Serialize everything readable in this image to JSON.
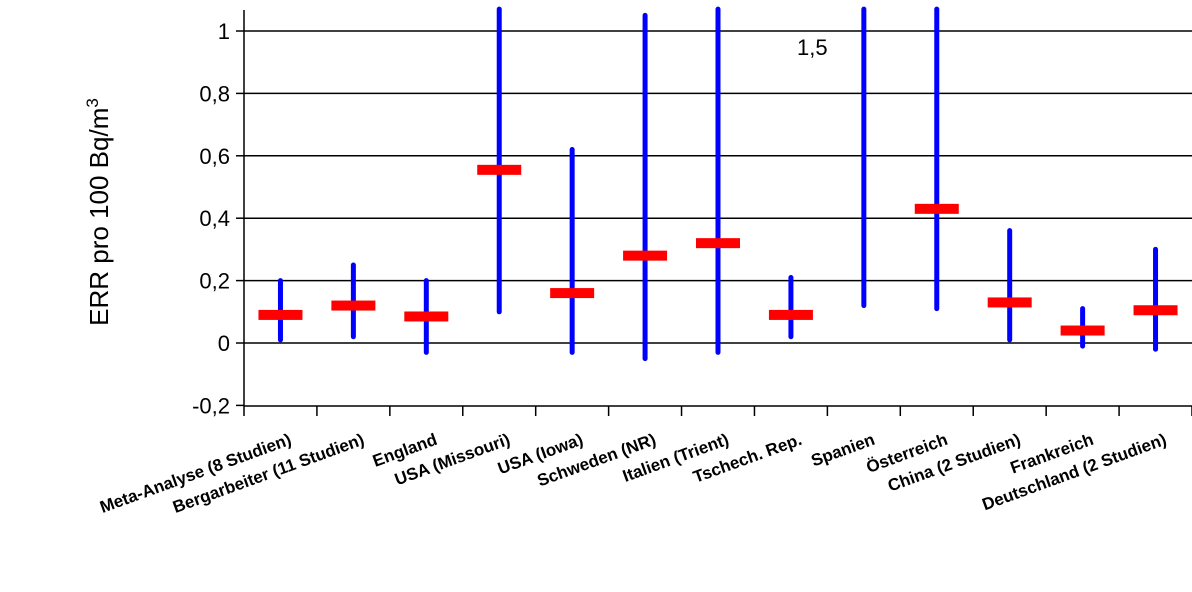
{
  "chart_data": {
    "type": "error-bar",
    "title": "",
    "xlabel": "",
    "ylabel": "ERR pro 100 Bq/m",
    "ylabel_superscript": "3",
    "ylim": [
      -0.2,
      1.07
    ],
    "yticks": [
      -0.2,
      0,
      0.2,
      0.4,
      0.6,
      0.8,
      1
    ],
    "ytick_labels": [
      "-0,2",
      "0",
      "0,2",
      "0,4",
      "0,6",
      "0,8",
      "1"
    ],
    "grid": true,
    "legend": "none",
    "colors": {
      "interval": "#0000ff",
      "estimate": "#ff0000",
      "grid": "#000000"
    },
    "categories": [
      "Meta-Analyse (8 Studien)",
      "Bergarbeiter (11 Studien)",
      "England",
      "USA (Missouri)",
      "USA (Iowa)",
      "Schweden (NR)",
      "Italien (Trient)",
      "Tschech. Rep.",
      "Spanien",
      "Österreich",
      "China (2 Studien)",
      "Frankreich",
      "Deutschland (2 Studien)"
    ],
    "estimates": [
      0.09,
      0.12,
      0.085,
      0.555,
      0.16,
      0.28,
      0.32,
      0.09,
      null,
      0.43,
      0.13,
      0.04,
      0.105
    ],
    "lower": [
      0.01,
      0.02,
      -0.03,
      0.1,
      -0.03,
      -0.05,
      -0.03,
      0.02,
      0.12,
      0.11,
      0.01,
      -0.01,
      -0.02
    ],
    "upper": [
      0.2,
      0.25,
      0.2,
      1.07,
      0.62,
      1.05,
      1.07,
      0.21,
      1.07,
      1.07,
      0.36,
      0.11,
      0.3
    ],
    "annotations": [
      {
        "text": "1,5"
      }
    ]
  }
}
